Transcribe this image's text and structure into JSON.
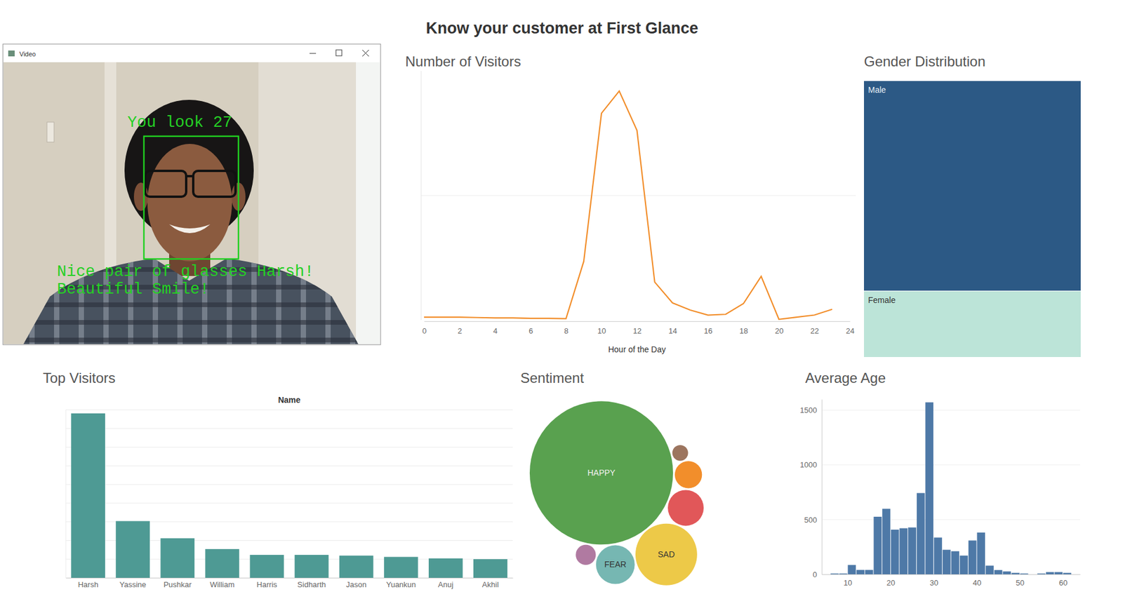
{
  "title": "Know your customer at First Glance",
  "video": {
    "window_title": "Video",
    "annotations": [
      "You look 27",
      "Nice pair of glasses Harsh!",
      "Beautiful Smile!"
    ]
  },
  "chart_data": [
    {
      "type": "line",
      "title": "Number of Visitors",
      "x_label": "Hour of the Day",
      "x": [
        0,
        1,
        2,
        3,
        4,
        5,
        6,
        7,
        8,
        9,
        10,
        11,
        12,
        13,
        14,
        15,
        16,
        17,
        18,
        19,
        20,
        21,
        22,
        23
      ],
      "values": [
        23,
        23,
        23,
        20,
        17,
        17,
        14,
        14,
        11,
        471,
        1661,
        1839,
        1523,
        305,
        138,
        80,
        40,
        46,
        132,
        351,
        6,
        23,
        40,
        86
      ],
      "color": "#f28e2b",
      "xlim": [
        0,
        24
      ],
      "xticks": [
        0,
        2,
        4,
        6,
        8,
        10,
        12,
        14,
        16,
        18,
        20,
        22,
        24
      ],
      "ylim": [
        0,
        2000
      ],
      "yticks": [
        1000
      ],
      "grid": true,
      "tick_labels": "x"
    },
    {
      "type": "treemap",
      "title": "Gender Distribution",
      "categories": [
        "Male",
        "Female"
      ],
      "values": [
        76,
        24
      ],
      "colors": [
        "#2c5985",
        "#bce4d8"
      ]
    },
    {
      "type": "bar",
      "title": "Top Visitors",
      "x_label": "Name",
      "categories": [
        "Harsh",
        "Yassine",
        "Pushkar",
        "William",
        "Harris",
        "Sidharth",
        "Jason",
        "Yuankun",
        "Anuj",
        "Akhil"
      ],
      "values": [
        881,
        304,
        212,
        154,
        123,
        123,
        119,
        112,
        104,
        100
      ],
      "color": "#4e9a94",
      "ylim": [
        0,
        900
      ],
      "yticks": [
        0,
        100,
        200,
        300,
        400,
        500,
        600,
        700,
        800,
        900
      ],
      "grid": true,
      "tick_labels": "x"
    },
    {
      "type": "bubble",
      "title": "Sentiment",
      "categories": [
        "HAPPY",
        "SAD",
        "FEAR",
        null,
        null,
        null,
        null
      ],
      "values": [
        10000,
        1849,
        729,
        625,
        361,
        196,
        121
      ],
      "colors": [
        "#59a14f",
        "#edc948",
        "#76b7b2",
        "#e15759",
        "#f28e2b",
        "#b07aa1",
        "#9c755f"
      ]
    },
    {
      "type": "histogram",
      "title": "Average Age",
      "bins": [
        6,
        8,
        10,
        12,
        14,
        16,
        18,
        20,
        22,
        24,
        26,
        28,
        30,
        32,
        34,
        36,
        38,
        40,
        42,
        44,
        46,
        48,
        50,
        52,
        54,
        56,
        58,
        60,
        62
      ],
      "values": [
        7,
        7,
        85,
        40,
        40,
        526,
        599,
        408,
        421,
        428,
        743,
        1572,
        336,
        224,
        211,
        171,
        309,
        382,
        79,
        39,
        26,
        13,
        7,
        0,
        7,
        20,
        20,
        13
      ],
      "color": "#4e79a7",
      "xlim": [
        4,
        64
      ],
      "xticks": [
        10,
        20,
        30,
        40,
        50,
        60
      ],
      "ylim": [
        0,
        1600
      ],
      "yticks": [
        0,
        500,
        1000,
        1500
      ],
      "grid": true
    }
  ]
}
